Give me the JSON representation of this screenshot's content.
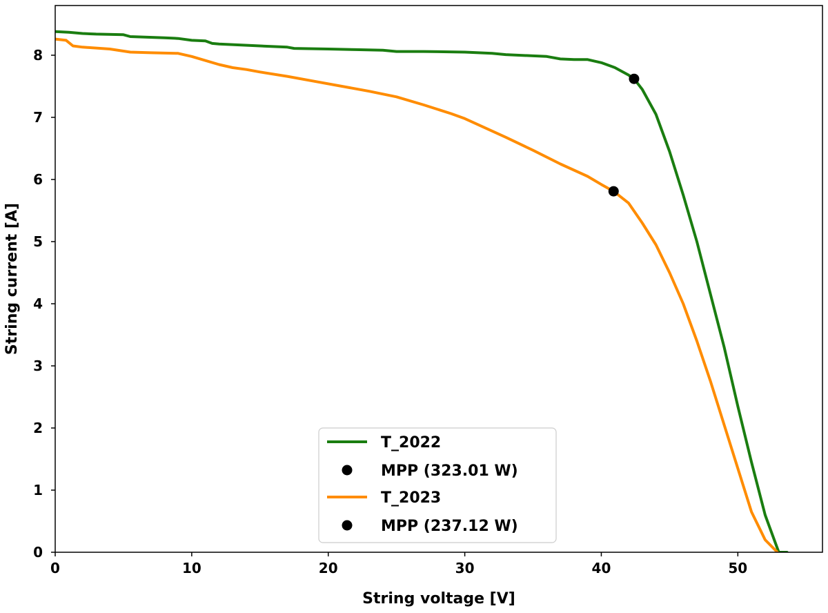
{
  "chart_data": {
    "type": "line",
    "xlabel": "String voltage [V]",
    "ylabel": "String current [A]",
    "xlim": [
      0,
      56.2
    ],
    "ylim": [
      0,
      8.8
    ],
    "xticks": [
      "0",
      "10",
      "20",
      "30",
      "40",
      "50"
    ],
    "yticks": [
      "0",
      "1",
      "2",
      "3",
      "4",
      "5",
      "6",
      "7",
      "8"
    ],
    "grid": false,
    "legend_position": "lower-center",
    "series": [
      {
        "name": "T_2022",
        "color": "#1a7d10",
        "x": [
          0,
          1,
          2,
          3,
          5,
          5.5,
          8,
          9,
          10,
          11,
          11.5,
          12,
          15,
          17,
          17.5,
          20,
          22,
          24,
          25,
          27,
          30,
          32,
          33,
          35,
          36,
          37,
          38,
          39,
          40,
          41,
          42,
          42.4,
          43,
          44,
          45,
          46,
          47,
          48,
          49,
          50,
          51,
          52,
          53,
          53.6
        ],
        "y": [
          8.38,
          8.37,
          8.35,
          8.34,
          8.33,
          8.3,
          8.28,
          8.27,
          8.24,
          8.23,
          8.19,
          8.18,
          8.15,
          8.13,
          8.11,
          8.1,
          8.09,
          8.08,
          8.06,
          8.06,
          8.05,
          8.03,
          8.01,
          7.99,
          7.98,
          7.94,
          7.93,
          7.93,
          7.88,
          7.8,
          7.68,
          7.62,
          7.45,
          7.05,
          6.45,
          5.75,
          5.0,
          4.15,
          3.3,
          2.35,
          1.45,
          0.6,
          0.0,
          0.0
        ]
      },
      {
        "name": "MPP (323.01 W)",
        "marker": "circle",
        "color": "#000000",
        "x": [
          42.4
        ],
        "y": [
          7.62
        ]
      },
      {
        "name": "T_2023",
        "color": "#ff8c00",
        "x": [
          0,
          0.8,
          1.3,
          2,
          4,
          5.5,
          7,
          9,
          10,
          12,
          13,
          14,
          15,
          17,
          19,
          21,
          23,
          25,
          27,
          29,
          30,
          31,
          32,
          33,
          35,
          37,
          39,
          40,
          40.9,
          42,
          43,
          44,
          45,
          46,
          47,
          48,
          49,
          50,
          51,
          52,
          52.9
        ],
        "y": [
          8.26,
          8.24,
          8.15,
          8.13,
          8.1,
          8.05,
          8.04,
          8.03,
          7.98,
          7.85,
          7.8,
          7.77,
          7.73,
          7.66,
          7.58,
          7.5,
          7.42,
          7.33,
          7.2,
          7.06,
          6.98,
          6.88,
          6.78,
          6.68,
          6.47,
          6.25,
          6.05,
          5.92,
          5.81,
          5.62,
          5.3,
          4.95,
          4.5,
          4.0,
          3.4,
          2.75,
          2.05,
          1.35,
          0.65,
          0.2,
          0.0
        ]
      },
      {
        "name": "MPP (237.12 W)",
        "marker": "circle",
        "color": "#000000",
        "x": [
          40.9
        ],
        "y": [
          5.81
        ]
      }
    ]
  }
}
